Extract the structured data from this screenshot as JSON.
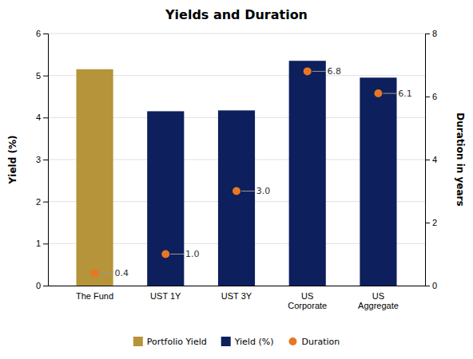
{
  "chart_data": {
    "type": "bar",
    "title": "Yields and Duration",
    "categories": [
      "The Fund",
      "UST 1Y",
      "UST 3Y",
      "US\nCorporate",
      "US\nAggregate"
    ],
    "series": [
      {
        "name": "Portfolio Yield",
        "type": "bar",
        "color": "#b5943a",
        "values": [
          5.15,
          null,
          null,
          null,
          null
        ]
      },
      {
        "name": "Yield (%)",
        "type": "bar",
        "color": "#0d1f5c",
        "values": [
          null,
          4.15,
          4.17,
          5.35,
          4.95
        ]
      },
      {
        "name": "Duration",
        "type": "scatter",
        "marker": "circle",
        "axis": "y2",
        "color": "#e87722",
        "values": [
          0.4,
          1.0,
          3.0,
          6.8,
          6.1
        ],
        "value_labels": [
          "0.4",
          "1.0",
          "3.0",
          "6.8",
          "6.1"
        ],
        "data_labels": true
      }
    ],
    "ylabel": "Yield (%)",
    "y2label": "Duration in years",
    "ylim": [
      0,
      6
    ],
    "yticks": [
      0,
      1,
      2,
      3,
      4,
      5,
      6
    ],
    "y2lim": [
      0,
      8
    ],
    "y2ticks": [
      0,
      2,
      4,
      6,
      8
    ],
    "grid": true,
    "legend": "bottom"
  }
}
